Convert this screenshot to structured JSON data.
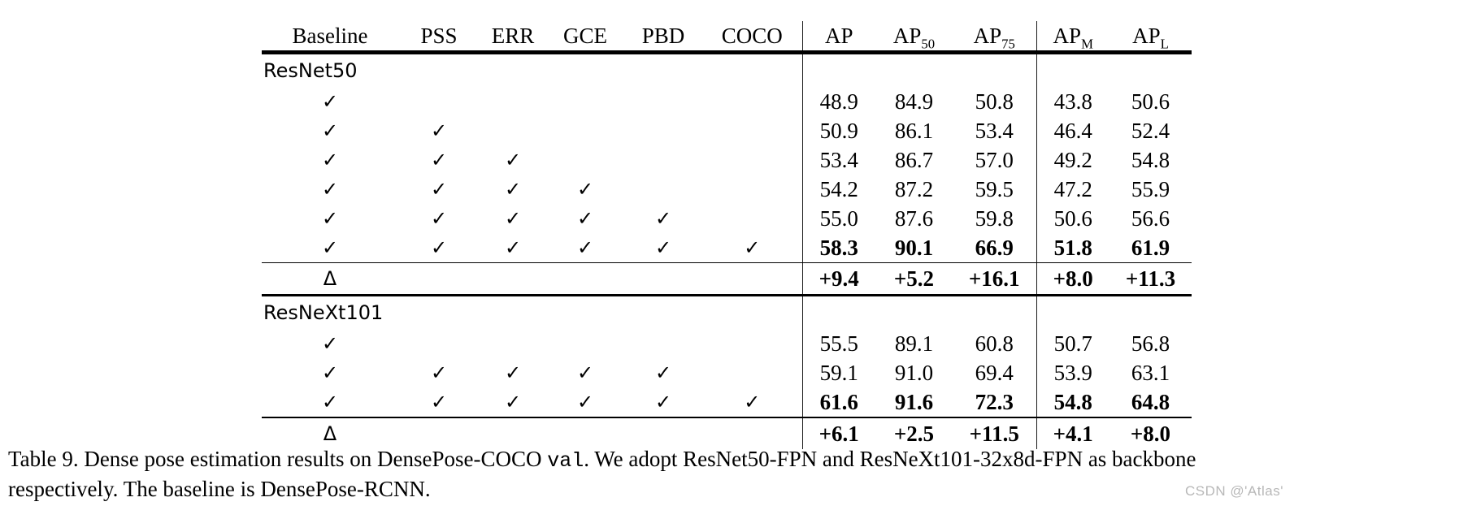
{
  "table": {
    "header": {
      "columns": [
        {
          "label": "Baseline",
          "sub": ""
        },
        {
          "label": "PSS",
          "sub": ""
        },
        {
          "label": "ERR",
          "sub": ""
        },
        {
          "label": "GCE",
          "sub": ""
        },
        {
          "label": "PBD",
          "sub": ""
        },
        {
          "label": "COCO",
          "sub": ""
        },
        {
          "label": "AP",
          "sub": ""
        },
        {
          "label": "AP",
          "sub": "50"
        },
        {
          "label": "AP",
          "sub": "75"
        },
        {
          "label": "AP",
          "sub": "M"
        },
        {
          "label": "AP",
          "sub": "L"
        }
      ]
    },
    "check_glyph": "✓",
    "delta_glyph": "Δ",
    "sections": [
      {
        "name": "ResNet50",
        "rows": [
          {
            "cells": [
              "✓",
              "",
              "",
              "",
              "",
              "",
              "48.9",
              "84.9",
              "50.8",
              "43.8",
              "50.6"
            ],
            "bold": false
          },
          {
            "cells": [
              "✓",
              "✓",
              "",
              "",
              "",
              "",
              "50.9",
              "86.1",
              "53.4",
              "46.4",
              "52.4"
            ],
            "bold": false
          },
          {
            "cells": [
              "✓",
              "✓",
              "✓",
              "",
              "",
              "",
              "53.4",
              "86.7",
              "57.0",
              "49.2",
              "54.8"
            ],
            "bold": false
          },
          {
            "cells": [
              "✓",
              "✓",
              "✓",
              "✓",
              "",
              "",
              "54.2",
              "87.2",
              "59.5",
              "47.2",
              "55.9"
            ],
            "bold": false
          },
          {
            "cells": [
              "✓",
              "✓",
              "✓",
              "✓",
              "✓",
              "",
              "55.0",
              "87.6",
              "59.8",
              "50.6",
              "56.6"
            ],
            "bold": false
          },
          {
            "cells": [
              "✓",
              "✓",
              "✓",
              "✓",
              "✓",
              "✓",
              "58.3",
              "90.1",
              "66.9",
              "51.8",
              "61.9"
            ],
            "bold": true
          }
        ],
        "delta_row": {
          "cells": [
            "Δ",
            "",
            "",
            "",
            "",
            "",
            "+9.4",
            "+5.2",
            "+16.1",
            "+8.0",
            "+11.3"
          ]
        }
      },
      {
        "name": "ResNeXt101",
        "rows": [
          {
            "cells": [
              "✓",
              "",
              "",
              "",
              "",
              "",
              "55.5",
              "89.1",
              "60.8",
              "50.7",
              "56.8"
            ],
            "bold": false
          },
          {
            "cells": [
              "✓",
              "✓",
              "✓",
              "✓",
              "✓",
              "",
              "59.1",
              "91.0",
              "69.4",
              "53.9",
              "63.1"
            ],
            "bold": false
          },
          {
            "cells": [
              "✓",
              "✓",
              "✓",
              "✓",
              "✓",
              "✓",
              "61.6",
              "91.6",
              "72.3",
              "54.8",
              "64.8"
            ],
            "bold": true
          }
        ],
        "delta_row": {
          "cells": [
            "Δ",
            "",
            "",
            "",
            "",
            "",
            "+6.1",
            "+2.5",
            "+11.5",
            "+4.1",
            "+8.0"
          ]
        }
      }
    ]
  },
  "caption": {
    "part1": "Table 9. Dense pose estimation results on DensePose-COCO ",
    "code": "val",
    "part2": ". We adopt ResNet50-FPN and ResNeXt101-32x8d-FPN as backbone",
    "part3": "respectively. The baseline is DensePose-RCNN."
  },
  "watermark": {
    "text": "CSDN @'Atlas'"
  }
}
